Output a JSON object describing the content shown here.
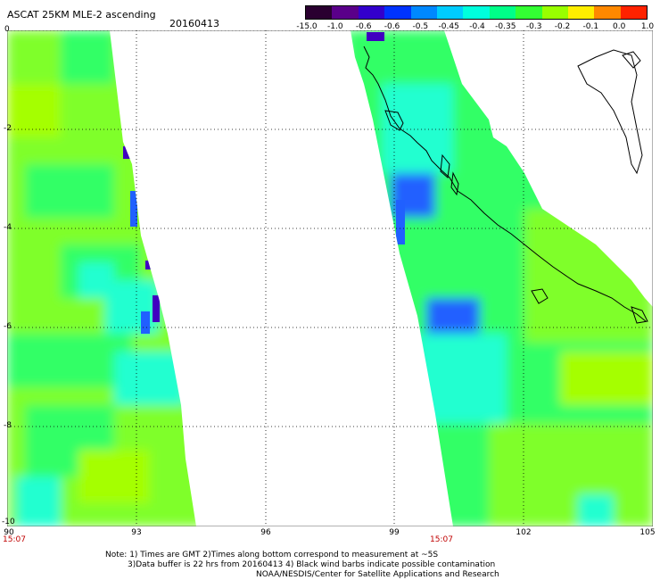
{
  "header": {
    "title": "ASCAT 25KM MLE-2 ascending",
    "date": "20160413"
  },
  "colorbar": {
    "labels": [
      "-15.0",
      "-1.0",
      "-0.6",
      "-0.6",
      "-0.5",
      "-0.45",
      "-0.4",
      "-0.35",
      "-0.3",
      "-0.2",
      "-0.1",
      "0.0",
      "1.0"
    ],
    "colors": [
      "#2a0030",
      "#5a008a",
      "#3300cc",
      "#0033ff",
      "#0088ff",
      "#00ccff",
      "#00ffdd",
      "#00ff88",
      "#33ff33",
      "#99ff00",
      "#ffee00",
      "#ff8800",
      "#ff2200"
    ]
  },
  "map": {
    "x_ticks": [
      "90",
      "93",
      "96",
      "99",
      "102",
      "105"
    ],
    "y_ticks": [
      "0",
      "-2",
      "-4",
      "-6",
      "-8",
      "-10"
    ],
    "times": [
      "15:07",
      "15:07"
    ],
    "colors": {
      "grass": "#7fff2a",
      "lime": "#a5ff00",
      "green": "#33ff66",
      "cyan": "#22ffd0",
      "aqua": "#20dcff",
      "blue": "#2060ff",
      "violet": "#4000c0",
      "coast": "#000000"
    }
  },
  "footer": {
    "line1": "Note: 1) Times are GMT 2)Times along bottom correspond to measurement at ~5S",
    "line2": "3)Data buffer is 22 hrs from 20160413 4) Black wind barbs indicate possible contamination",
    "line3": "NOAA/NESDIS/Center for Satellite Applications and Research"
  }
}
